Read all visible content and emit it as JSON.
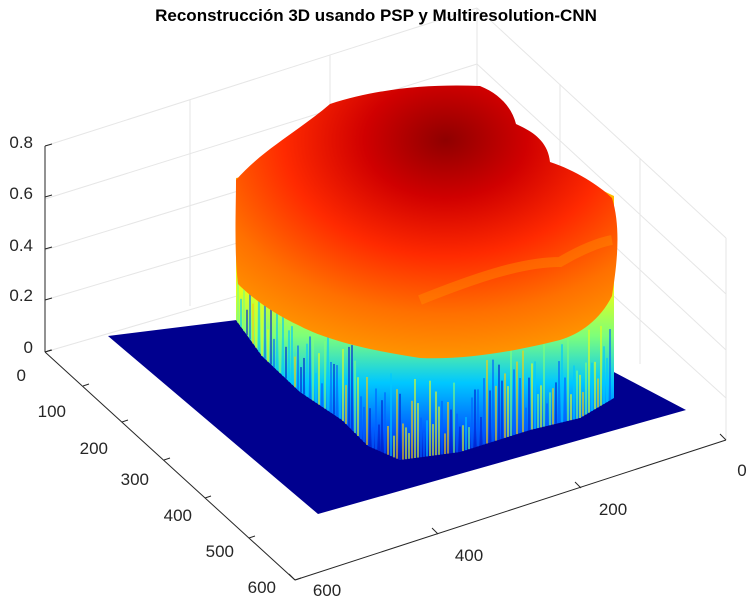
{
  "chart_data": {
    "type": "surface",
    "title": "Reconstrucción 3D usando PSP y Multiresolution-CNN",
    "colormap": "jet",
    "grid": true,
    "x_axis": {
      "ticks": [
        "0",
        "200",
        "400",
        "600"
      ],
      "range": [
        0,
        600
      ]
    },
    "y_axis": {
      "ticks": [
        "0",
        "100",
        "200",
        "300",
        "400",
        "500",
        "600"
      ],
      "range": [
        0,
        600
      ]
    },
    "z_axis": {
      "ticks": [
        "0",
        "0.2",
        "0.4",
        "0.6",
        "0.8"
      ],
      "range": [
        0,
        0.8
      ]
    },
    "surface": {
      "base_level": 0,
      "object_top_min": 0.55,
      "object_top_max": 0.8,
      "description_peak": "maximum about 0.8 near the back center of the object"
    },
    "colors": {
      "base": "#00008f",
      "low": "#0040ff",
      "mid_low": "#00c8ff",
      "mid": "#e6ff19",
      "mid_high": "#ffa000",
      "high": "#ff2000",
      "peak": "#8f0000"
    }
  }
}
